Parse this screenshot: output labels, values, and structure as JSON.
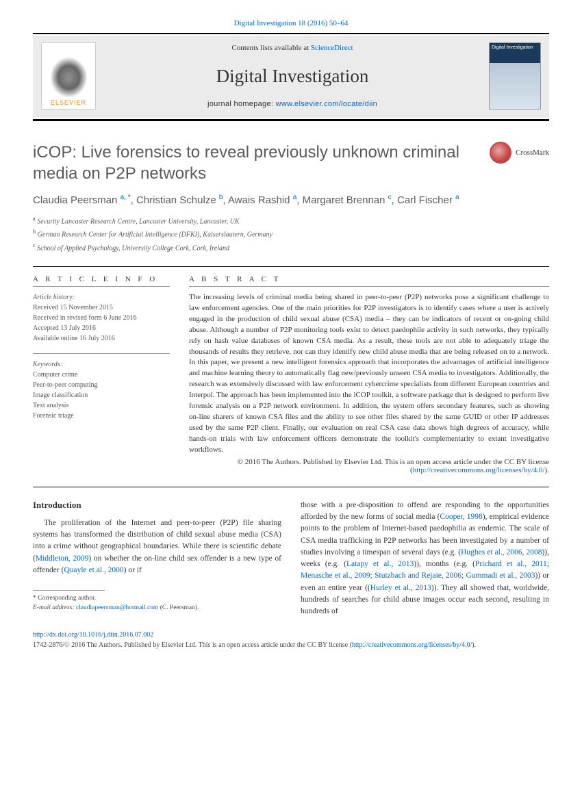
{
  "citation": "Digital Investigation 18 (2016) 50–64",
  "header": {
    "contents_prefix": "Contents lists available at ",
    "contents_link": "ScienceDirect",
    "journal": "Digital Investigation",
    "homepage_prefix": "journal homepage: ",
    "homepage_link": "www.elsevier.com/locate/diin",
    "publisher_logo": "ELSEVIER",
    "cover_text": "Digital Investigation"
  },
  "crossmark_label": "CrossMark",
  "title": "iCOP: Live forensics to reveal previously unknown criminal media on P2P networks",
  "authors": [
    {
      "name": "Claudia Peersman ",
      "sup": "a, *"
    },
    {
      "name": "Christian Schulze ",
      "sup": "b"
    },
    {
      "name": "Awais Rashid ",
      "sup": "a"
    },
    {
      "name": "Margaret Brennan ",
      "sup": "c"
    },
    {
      "name": "Carl Fischer ",
      "sup": "a"
    }
  ],
  "affiliations": [
    {
      "label": "a",
      "text": " Security Lancaster Research Centre, Lancaster University, Lancaster, UK"
    },
    {
      "label": "b",
      "text": " German Research Center for Artificial Intelligence (DFKI), Kaiserslautern, Germany"
    },
    {
      "label": "c",
      "text": " School of Applied Psychology, University College Cork, Cork, Ireland"
    }
  ],
  "article_info_heading": "A R T I C L E   I N F O",
  "history_label": "Article history:",
  "history": [
    "Received 15 November 2015",
    "Received in revised form 6 June 2016",
    "Accepted 13 July 2016",
    "Available online 16 July 2016"
  ],
  "keywords_label": "Keywords:",
  "keywords": [
    "Computer crime",
    "Peer-to-peer computing",
    "Image classification",
    "Text analysis",
    "Forensic triage"
  ],
  "abstract_heading": "A B S T R A C T",
  "abstract": "The increasing levels of criminal media being shared in peer-to-peer (P2P) networks pose a significant challenge to law enforcement agencies. One of the main priorities for P2P investigators is to identify cases where a user is actively engaged in the production of child sexual abuse (CSA) media – they can be indicators of recent or on-going child abuse. Although a number of P2P monitoring tools exist to detect paedophile activity in such networks, they typically rely on hash value databases of known CSA media. As a result, these tools are not able to adequately triage the thousands of results they retrieve, nor can they identify new child abuse media that are being released on to a network. In this paper, we present a new intelligent forensics approach that incorporates the advantages of artificial intelligence and machine learning theory to automatically flag new/previously unseen CSA media to investigators. Additionally, the research was extensively discussed with law enforcement cybercrime specialists from different European countries and Interpol. The approach has been implemented into the iCOP toolkit, a software package that is designed to perform live forensic analysis on a P2P network environment. In addition, the system offers secondary features, such as showing on-line sharers of known CSA files and the ability to see other files shared by the same GUID or other IP addresses used by the same P2P client. Finally, our evaluation on real CSA case data shows high degrees of accuracy, while hands-on trials with law enforcement officers demonstrate the toolkit's complementarity to extant investigative workflows.",
  "copyright": "© 2016 The Authors. Published by Elsevier Ltd. This is an open access article under the CC BY license (",
  "license_link": "http://creativecommons.org/licenses/by/4.0/",
  "license_close": ").",
  "intro_heading": "Introduction",
  "intro_col1": "The proliferation of the Internet and peer-to-peer (P2P) file sharing systems has transformed the distribution of child sexual abuse media (CSA) into a crime without geographical boundaries. While there is scientific debate (",
  "intro_link1": "Middleton, 2009",
  "intro_mid1": ") on whether the on-line child sex offender is a new type of offender (",
  "intro_link2": "Quayle et al., 2000",
  "intro_end1": ") or if",
  "intro_col2_start": "those with a pre-disposition to offend are responding to the opportunities afforded by the new forms of social media (",
  "intro_link3": "Cooper, 1998",
  "intro_mid2": "), empirical evidence points to the problem of Internet-based paedophilia as endemic. The scale of CSA media trafficking in P2P networks has been investigated by a number of studies involving a timespan of several days (e.g. (",
  "intro_link4": "Hughes et al., 2006, 2008",
  "intro_mid3": ")), weeks (e.g. (",
  "intro_link5": "Latapy et al., 2013",
  "intro_mid4": ")), months (e.g. (",
  "intro_link6": "Prichard et al., 2011; Menasche et al., 2009; Stutzbach and Rejaie, 2006; Gummadi et al., 2003",
  "intro_mid5": ")) or even an entire year ((",
  "intro_link7": "Hurley et al., 2013",
  "intro_end2": ")). They all showed that, worldwide, hundreds of searches for child abuse images occur each second, resulting in hundreds of",
  "footnote_corr": "* Corresponding author.",
  "footnote_email_label": "E-mail address: ",
  "footnote_email": "claudiapeersman@hotmail.com",
  "footnote_email_suffix": " (C. Peersman).",
  "doi": "http://dx.doi.org/10.1016/j.diin.2016.07.002",
  "footer_text": "1742-2876/© 2016 The Authors. Published by Elsevier Ltd. This is an open access article under the CC BY license (",
  "footer_link": "http://creativecommons.org/licenses/by/4.0/",
  "footer_close": ")."
}
